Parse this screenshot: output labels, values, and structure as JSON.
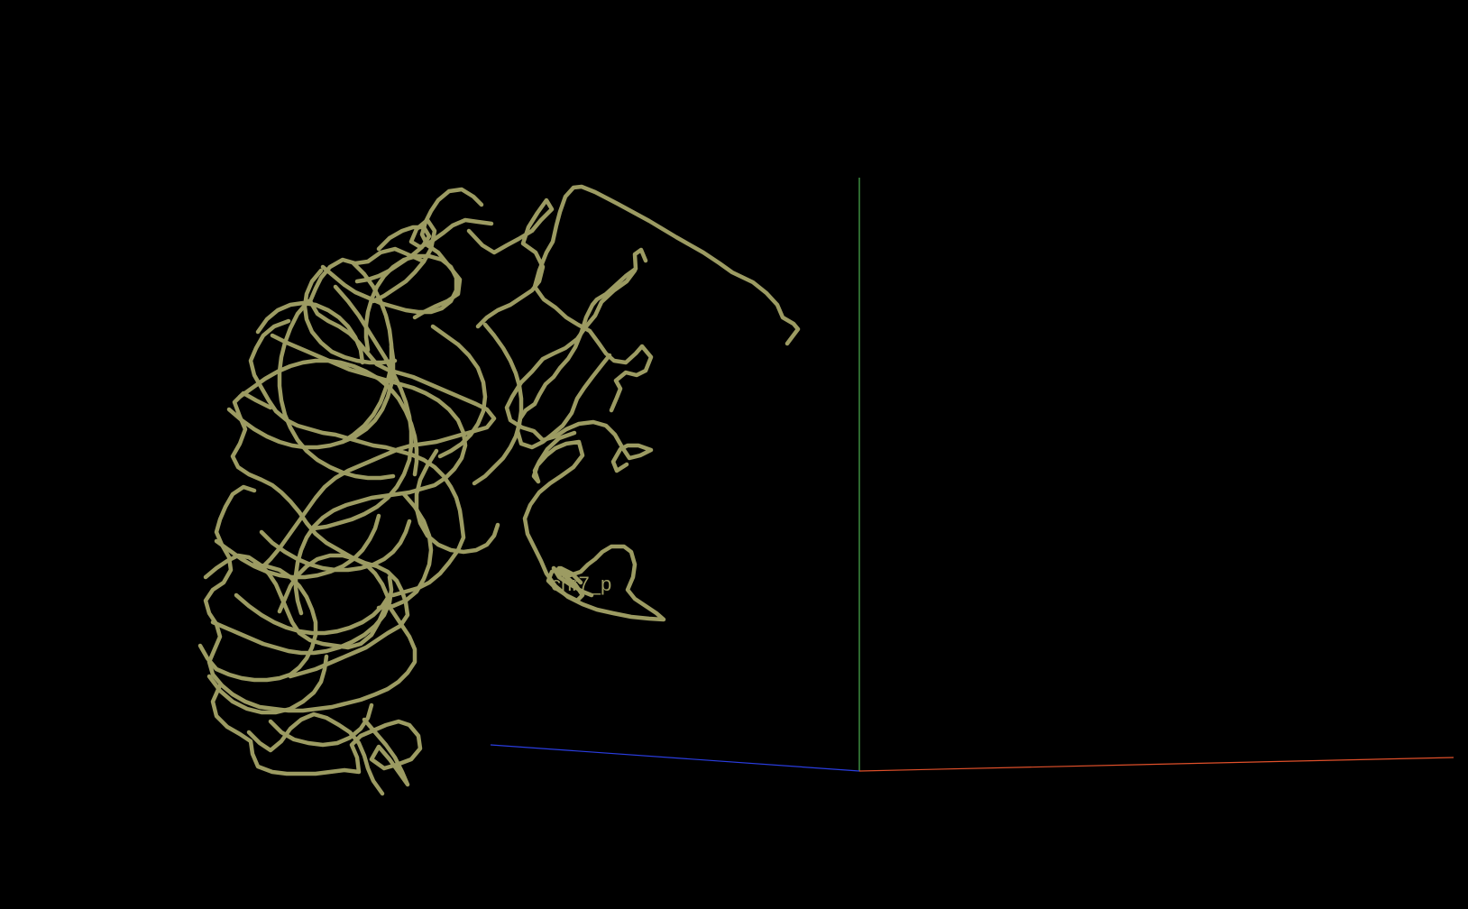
{
  "viewer": {
    "background": "#000000",
    "structure": {
      "label": "chr7_p",
      "color": "#9c9b62"
    },
    "axes": {
      "x_color": "#e0502a",
      "y_color": "#4caf50",
      "z_color": "#2a3de0"
    }
  }
}
